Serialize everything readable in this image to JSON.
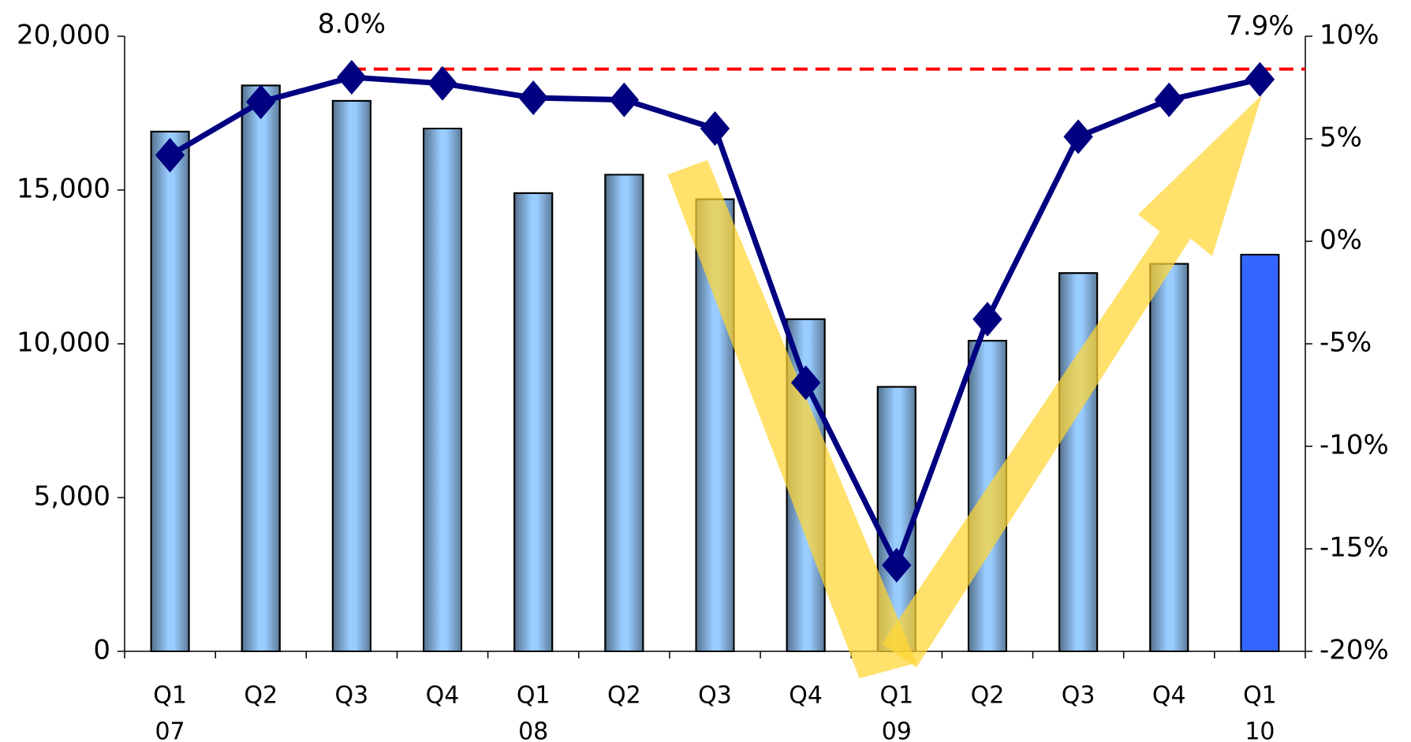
{
  "chart_data": {
    "type": "bar-line",
    "categories": [
      "Q1",
      "Q2",
      "Q3",
      "Q4",
      "Q1",
      "Q2",
      "Q3",
      "Q4",
      "Q1",
      "Q2",
      "Q3",
      "Q4",
      "Q1"
    ],
    "years": [
      "07",
      null,
      null,
      null,
      "08",
      null,
      null,
      null,
      "09",
      null,
      null,
      null,
      "10"
    ],
    "series": [
      {
        "type": "bar",
        "axis": "y",
        "colors": [
          "#99ccff",
          "#99ccff",
          "#99ccff",
          "#99ccff",
          "#99ccff",
          "#99ccff",
          "#99ccff",
          "#99ccff",
          "#99ccff",
          "#99ccff",
          "#99ccff",
          "#99ccff",
          "#3366ff"
        ],
        "values": [
          16900,
          18400,
          17900,
          17000,
          14900,
          15500,
          14700,
          10800,
          8600,
          10100,
          12300,
          12600,
          12900
        ]
      },
      {
        "type": "line",
        "axis": "y2",
        "color": "#000080",
        "values": [
          4.2,
          6.8,
          8.0,
          7.7,
          7.0,
          6.9,
          5.5,
          -6.9,
          -15.8,
          -3.8,
          5.1,
          6.9,
          7.9
        ],
        "value_labels": [
          null,
          null,
          "8.0%",
          null,
          null,
          null,
          null,
          null,
          null,
          null,
          null,
          null,
          "7.9%"
        ]
      }
    ],
    "reference_line": {
      "axis": "y2",
      "value": 8.4,
      "color": "#ff0000",
      "from_index": 2
    },
    "ylim": [
      0,
      20000
    ],
    "yticks": [
      0,
      {
        "value": 5000,
        "label": "5,000"
      },
      {
        "value": 10000,
        "label": "10,000"
      },
      {
        "value": 15000,
        "label": "15,000"
      },
      {
        "value": 20000,
        "label": "20,000"
      }
    ],
    "y2lim": [
      -20,
      10
    ],
    "y2ticks": [
      {
        "value": -20,
        "label": "-20%"
      },
      {
        "value": -15,
        "label": "-15%"
      },
      {
        "value": -10,
        "label": "-10%"
      },
      {
        "value": -5,
        "label": "-5%"
      },
      {
        "value": 0,
        "label": "0%"
      },
      {
        "value": 5,
        "label": "5%"
      },
      {
        "value": 10,
        "label": "10%"
      }
    ]
  }
}
